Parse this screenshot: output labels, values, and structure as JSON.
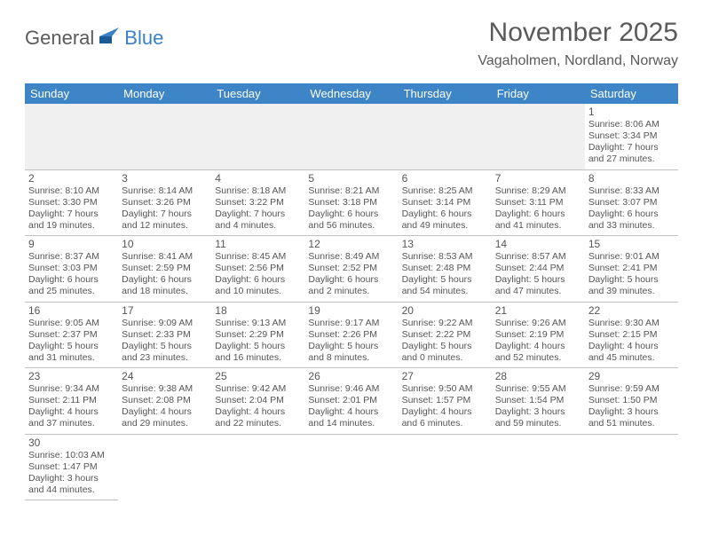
{
  "logo": {
    "text_general": "General",
    "text_blue": "Blue"
  },
  "title": "November 2025",
  "location": "Vagaholmen, Nordland, Norway",
  "colors": {
    "header_bg": "#3d85c6",
    "header_text": "#ffffff",
    "text": "#555555",
    "row_border": "#3d85c6",
    "cell_border": "#c0c0c0",
    "empty_bg": "#f0f0f0",
    "logo_blue": "#3b82c4",
    "background": "#ffffff"
  },
  "typography": {
    "title_fontsize": 30,
    "location_fontsize": 16,
    "header_fontsize": 13,
    "daynum_fontsize": 12,
    "info_fontsize": 10.5,
    "logo_fontsize": 22
  },
  "days_of_week": [
    "Sunday",
    "Monday",
    "Tuesday",
    "Wednesday",
    "Thursday",
    "Friday",
    "Saturday"
  ],
  "weeks": [
    [
      null,
      null,
      null,
      null,
      null,
      null,
      {
        "num": "1",
        "sunrise": "8:06 AM",
        "sunset": "3:34 PM",
        "daylight": "7 hours and 27 minutes."
      }
    ],
    [
      {
        "num": "2",
        "sunrise": "8:10 AM",
        "sunset": "3:30 PM",
        "daylight": "7 hours and 19 minutes."
      },
      {
        "num": "3",
        "sunrise": "8:14 AM",
        "sunset": "3:26 PM",
        "daylight": "7 hours and 12 minutes."
      },
      {
        "num": "4",
        "sunrise": "8:18 AM",
        "sunset": "3:22 PM",
        "daylight": "7 hours and 4 minutes."
      },
      {
        "num": "5",
        "sunrise": "8:21 AM",
        "sunset": "3:18 PM",
        "daylight": "6 hours and 56 minutes."
      },
      {
        "num": "6",
        "sunrise": "8:25 AM",
        "sunset": "3:14 PM",
        "daylight": "6 hours and 49 minutes."
      },
      {
        "num": "7",
        "sunrise": "8:29 AM",
        "sunset": "3:11 PM",
        "daylight": "6 hours and 41 minutes."
      },
      {
        "num": "8",
        "sunrise": "8:33 AM",
        "sunset": "3:07 PM",
        "daylight": "6 hours and 33 minutes."
      }
    ],
    [
      {
        "num": "9",
        "sunrise": "8:37 AM",
        "sunset": "3:03 PM",
        "daylight": "6 hours and 25 minutes."
      },
      {
        "num": "10",
        "sunrise": "8:41 AM",
        "sunset": "2:59 PM",
        "daylight": "6 hours and 18 minutes."
      },
      {
        "num": "11",
        "sunrise": "8:45 AM",
        "sunset": "2:56 PM",
        "daylight": "6 hours and 10 minutes."
      },
      {
        "num": "12",
        "sunrise": "8:49 AM",
        "sunset": "2:52 PM",
        "daylight": "6 hours and 2 minutes."
      },
      {
        "num": "13",
        "sunrise": "8:53 AM",
        "sunset": "2:48 PM",
        "daylight": "5 hours and 54 minutes."
      },
      {
        "num": "14",
        "sunrise": "8:57 AM",
        "sunset": "2:44 PM",
        "daylight": "5 hours and 47 minutes."
      },
      {
        "num": "15",
        "sunrise": "9:01 AM",
        "sunset": "2:41 PM",
        "daylight": "5 hours and 39 minutes."
      }
    ],
    [
      {
        "num": "16",
        "sunrise": "9:05 AM",
        "sunset": "2:37 PM",
        "daylight": "5 hours and 31 minutes."
      },
      {
        "num": "17",
        "sunrise": "9:09 AM",
        "sunset": "2:33 PM",
        "daylight": "5 hours and 23 minutes."
      },
      {
        "num": "18",
        "sunrise": "9:13 AM",
        "sunset": "2:29 PM",
        "daylight": "5 hours and 16 minutes."
      },
      {
        "num": "19",
        "sunrise": "9:17 AM",
        "sunset": "2:26 PM",
        "daylight": "5 hours and 8 minutes."
      },
      {
        "num": "20",
        "sunrise": "9:22 AM",
        "sunset": "2:22 PM",
        "daylight": "5 hours and 0 minutes."
      },
      {
        "num": "21",
        "sunrise": "9:26 AM",
        "sunset": "2:19 PM",
        "daylight": "4 hours and 52 minutes."
      },
      {
        "num": "22",
        "sunrise": "9:30 AM",
        "sunset": "2:15 PM",
        "daylight": "4 hours and 45 minutes."
      }
    ],
    [
      {
        "num": "23",
        "sunrise": "9:34 AM",
        "sunset": "2:11 PM",
        "daylight": "4 hours and 37 minutes."
      },
      {
        "num": "24",
        "sunrise": "9:38 AM",
        "sunset": "2:08 PM",
        "daylight": "4 hours and 29 minutes."
      },
      {
        "num": "25",
        "sunrise": "9:42 AM",
        "sunset": "2:04 PM",
        "daylight": "4 hours and 22 minutes."
      },
      {
        "num": "26",
        "sunrise": "9:46 AM",
        "sunset": "2:01 PM",
        "daylight": "4 hours and 14 minutes."
      },
      {
        "num": "27",
        "sunrise": "9:50 AM",
        "sunset": "1:57 PM",
        "daylight": "4 hours and 6 minutes."
      },
      {
        "num": "28",
        "sunrise": "9:55 AM",
        "sunset": "1:54 PM",
        "daylight": "3 hours and 59 minutes."
      },
      {
        "num": "29",
        "sunrise": "9:59 AM",
        "sunset": "1:50 PM",
        "daylight": "3 hours and 51 minutes."
      }
    ],
    [
      {
        "num": "30",
        "sunrise": "10:03 AM",
        "sunset": "1:47 PM",
        "daylight": "3 hours and 44 minutes."
      },
      null,
      null,
      null,
      null,
      null,
      null
    ]
  ],
  "labels": {
    "sunrise_prefix": "Sunrise: ",
    "sunset_prefix": "Sunset: ",
    "daylight_prefix": "Daylight: "
  }
}
